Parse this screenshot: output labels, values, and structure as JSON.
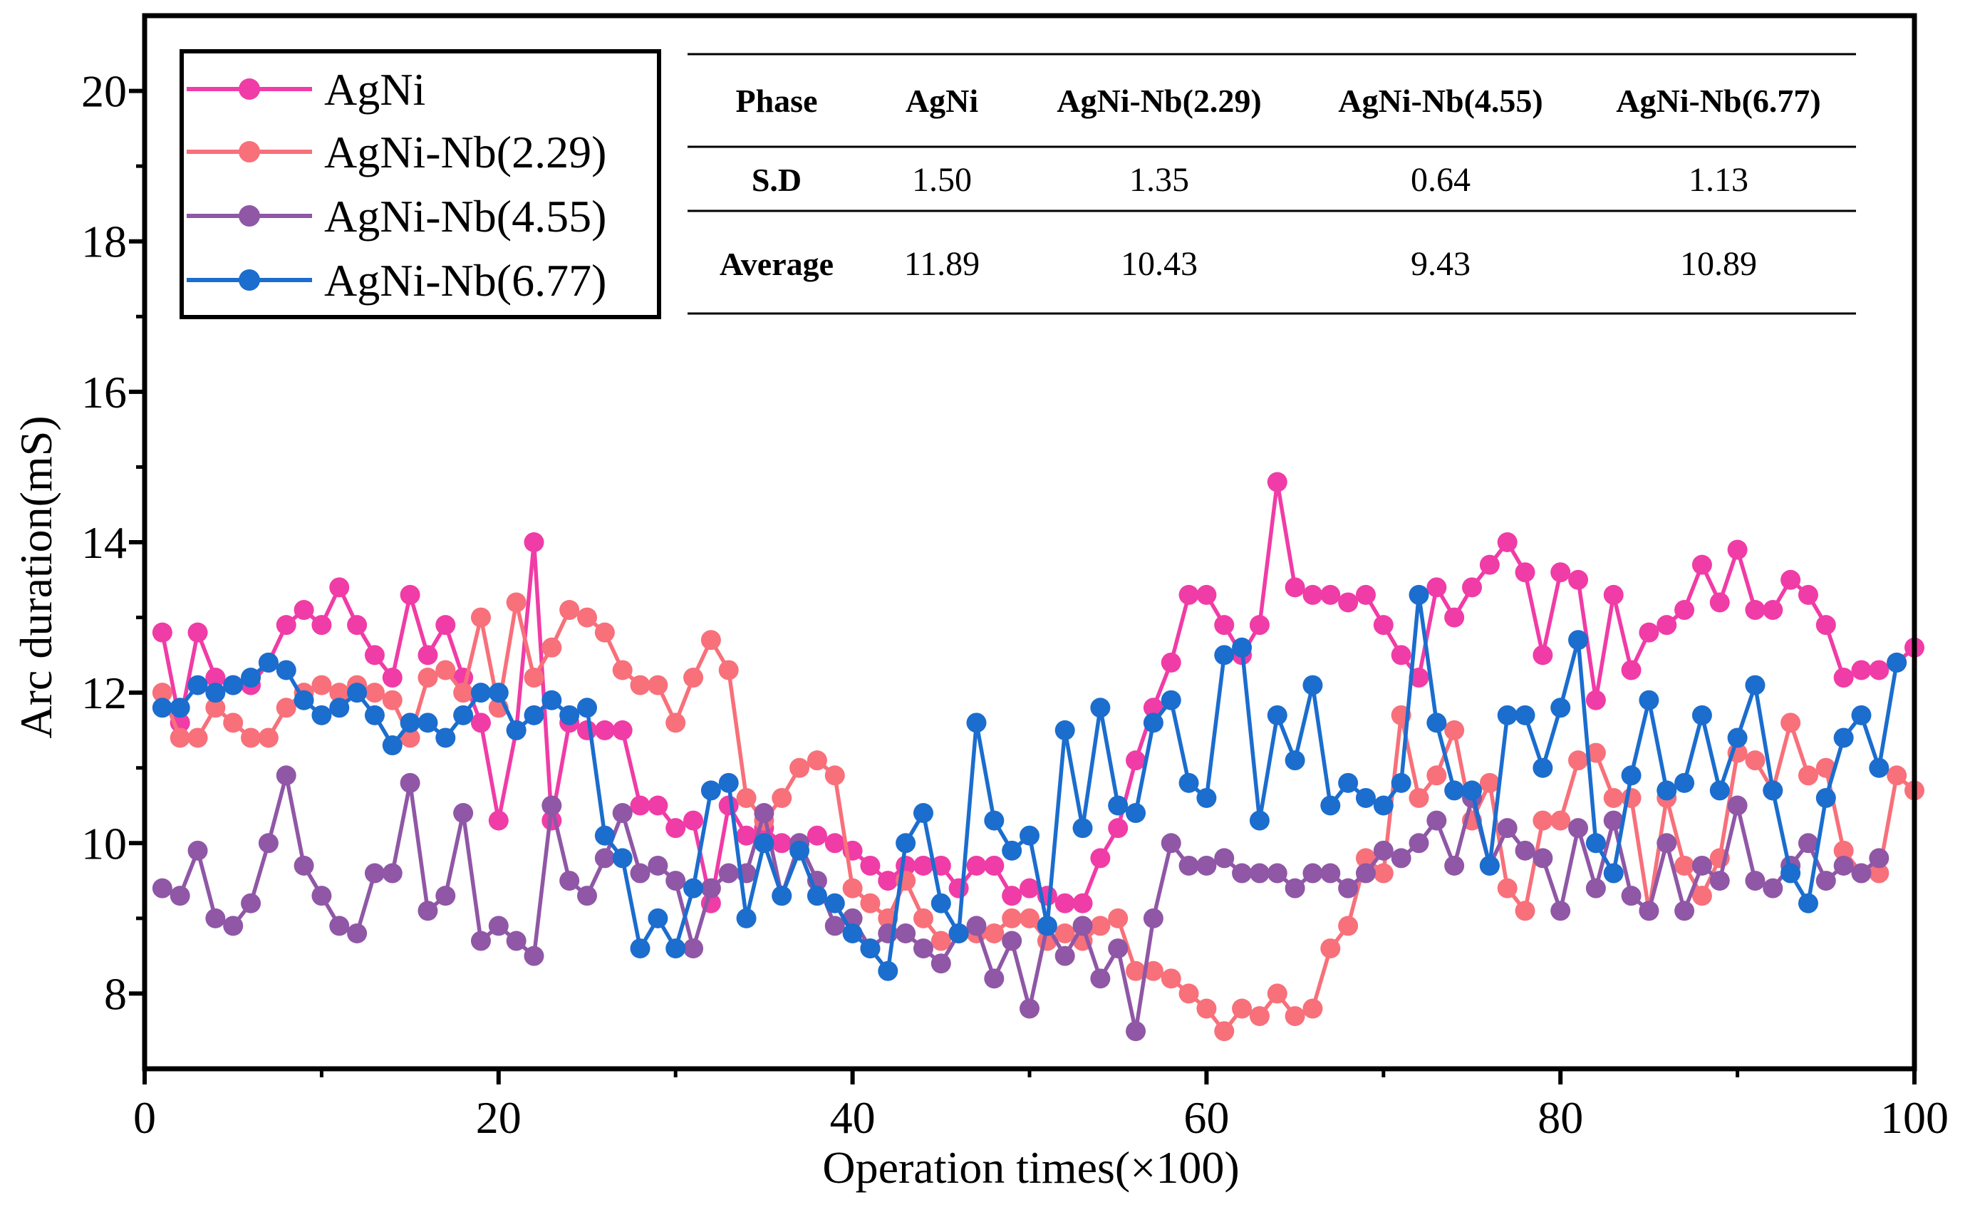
{
  "chart_data": {
    "type": "line",
    "xlabel": "Operation times(×100)",
    "ylabel": "Arc duration(mS)",
    "xlim": [
      0,
      100
    ],
    "ylim": [
      7,
      21
    ],
    "xticks": [
      0,
      20,
      40,
      60,
      80,
      100
    ],
    "yticks": [
      8,
      10,
      12,
      14,
      16,
      18,
      20
    ],
    "legend_position": "top-left",
    "series": [
      {
        "name": "AgNi",
        "color": "#f03ca6",
        "values": [
          12.8,
          11.6,
          12.8,
          12.2,
          12.1,
          12.1,
          12.4,
          12.9,
          13.1,
          12.9,
          13.4,
          12.9,
          12.5,
          12.2,
          13.3,
          12.5,
          12.9,
          12.2,
          11.6,
          10.3,
          11.5,
          14.0,
          10.3,
          11.6,
          11.5,
          11.5,
          11.5,
          10.5,
          10.5,
          10.2,
          10.3,
          9.2,
          10.5,
          10.1,
          10.2,
          10.0,
          10.0,
          10.1,
          10.0,
          9.9,
          9.7,
          9.5,
          9.7,
          9.7,
          9.7,
          9.4,
          9.7,
          9.7,
          9.3,
          9.4,
          9.3,
          9.2,
          9.2,
          9.8,
          10.2,
          11.1,
          11.8,
          12.4,
          13.3,
          13.3,
          12.9,
          12.5,
          12.9,
          14.8,
          13.4,
          13.3,
          13.3,
          13.2,
          13.3,
          12.9,
          12.5,
          12.2,
          13.4,
          13.0,
          13.4,
          13.7,
          14.0,
          13.6,
          12.5,
          13.6,
          13.5,
          11.9,
          13.3,
          12.3,
          12.8,
          12.9,
          13.1,
          13.7,
          13.2,
          13.9,
          13.1,
          13.1,
          13.5,
          13.3,
          12.9,
          12.2,
          12.3,
          12.3,
          12.4,
          12.6
        ]
      },
      {
        "name": "AgNi-Nb(2.29)",
        "color": "#f7707a",
        "values": [
          12.0,
          11.4,
          11.4,
          11.8,
          11.6,
          11.4,
          11.4,
          11.8,
          12.0,
          12.1,
          12.0,
          12.1,
          12.0,
          11.9,
          11.4,
          12.2,
          12.3,
          12.0,
          13.0,
          11.8,
          13.2,
          12.2,
          12.6,
          13.1,
          13.0,
          12.8,
          12.3,
          12.1,
          12.1,
          11.6,
          12.2,
          12.7,
          12.3,
          10.6,
          10.3,
          10.6,
          11.0,
          11.1,
          10.9,
          9.4,
          9.2,
          9.0,
          9.5,
          9.0,
          8.7,
          8.8,
          8.8,
          8.8,
          9.0,
          9.0,
          8.7,
          8.8,
          8.7,
          8.9,
          9.0,
          8.3,
          8.3,
          8.2,
          8.0,
          7.8,
          7.5,
          7.8,
          7.7,
          8.0,
          7.7,
          7.8,
          8.6,
          8.9,
          9.8,
          9.6,
          11.7,
          10.6,
          10.9,
          11.5,
          10.3,
          10.8,
          9.4,
          9.1,
          10.3,
          10.3,
          11.1,
          11.2,
          10.6,
          10.6,
          9.1,
          10.6,
          9.7,
          9.3,
          9.8,
          11.2,
          11.1,
          10.7,
          11.6,
          10.9,
          11.0,
          9.9,
          9.6,
          9.6,
          10.9,
          10.7
        ]
      },
      {
        "name": "AgNi-Nb(4.55)",
        "color": "#8f57a6",
        "values": [
          9.4,
          9.3,
          9.9,
          9.0,
          8.9,
          9.2,
          10.0,
          10.9,
          9.7,
          9.3,
          8.9,
          8.8,
          9.6,
          9.6,
          10.8,
          9.1,
          9.3,
          10.4,
          8.7,
          8.9,
          8.7,
          8.5,
          10.5,
          9.5,
          9.3,
          9.8,
          10.4,
          9.6,
          9.7,
          9.5,
          8.6,
          9.4,
          9.6,
          9.6,
          10.4,
          9.3,
          10.0,
          9.5,
          8.9,
          9.0,
          8.6,
          8.8,
          8.8,
          8.6,
          8.4,
          8.8,
          8.9,
          8.2,
          8.7,
          7.8,
          8.9,
          8.5,
          8.9,
          8.2,
          8.6,
          7.5,
          9.0,
          10.0,
          9.7,
          9.7,
          9.8,
          9.6,
          9.6,
          9.6,
          9.4,
          9.6,
          9.6,
          9.4,
          9.6,
          9.9,
          9.8,
          10.0,
          10.3,
          9.7,
          10.6,
          9.7,
          10.2,
          9.9,
          9.8,
          9.1,
          10.2,
          9.4,
          10.3,
          9.3,
          9.1,
          10.0,
          9.1,
          9.7,
          9.5,
          10.5,
          9.5,
          9.4,
          9.7,
          10.0,
          9.5,
          9.7,
          9.6,
          9.8
        ]
      },
      {
        "name": "AgNi-Nb(6.77)",
        "color": "#1b6dce",
        "values": [
          11.8,
          11.8,
          12.1,
          12.0,
          12.1,
          12.2,
          12.4,
          12.3,
          11.9,
          11.7,
          11.8,
          12.0,
          11.7,
          11.3,
          11.6,
          11.6,
          11.4,
          11.7,
          12.0,
          12.0,
          11.5,
          11.7,
          11.9,
          11.7,
          11.8,
          10.1,
          9.8,
          8.6,
          9.0,
          8.6,
          9.4,
          10.7,
          10.8,
          9.0,
          10.0,
          9.3,
          9.9,
          9.3,
          9.2,
          8.8,
          8.6,
          8.3,
          10.0,
          10.4,
          9.2,
          8.8,
          11.6,
          10.3,
          9.9,
          10.1,
          8.9,
          11.5,
          10.2,
          11.8,
          10.5,
          10.4,
          11.6,
          11.9,
          10.8,
          10.6,
          12.5,
          12.6,
          10.3,
          11.7,
          11.1,
          12.1,
          10.5,
          10.8,
          10.6,
          10.5,
          10.8,
          13.3,
          11.6,
          10.7,
          10.7,
          9.7,
          11.7,
          11.7,
          11.0,
          11.8,
          12.7,
          10.0,
          9.6,
          10.9,
          11.9,
          10.7,
          10.8,
          11.7,
          10.7,
          11.4,
          12.1,
          10.7,
          9.6,
          9.2,
          10.6,
          11.4,
          11.7,
          11.0,
          12.4
        ]
      }
    ],
    "table": {
      "headers": [
        "Phase",
        "AgNi",
        "AgNi-Nb(2.29)",
        "AgNi-Nb(4.55)",
        "AgNi-Nb(6.77)"
      ],
      "rows": [
        [
          "S.D",
          "1.50",
          "1.35",
          "0.64",
          "1.13"
        ],
        [
          "Average",
          "11.89",
          "10.43",
          "9.43",
          "10.89"
        ]
      ]
    }
  }
}
